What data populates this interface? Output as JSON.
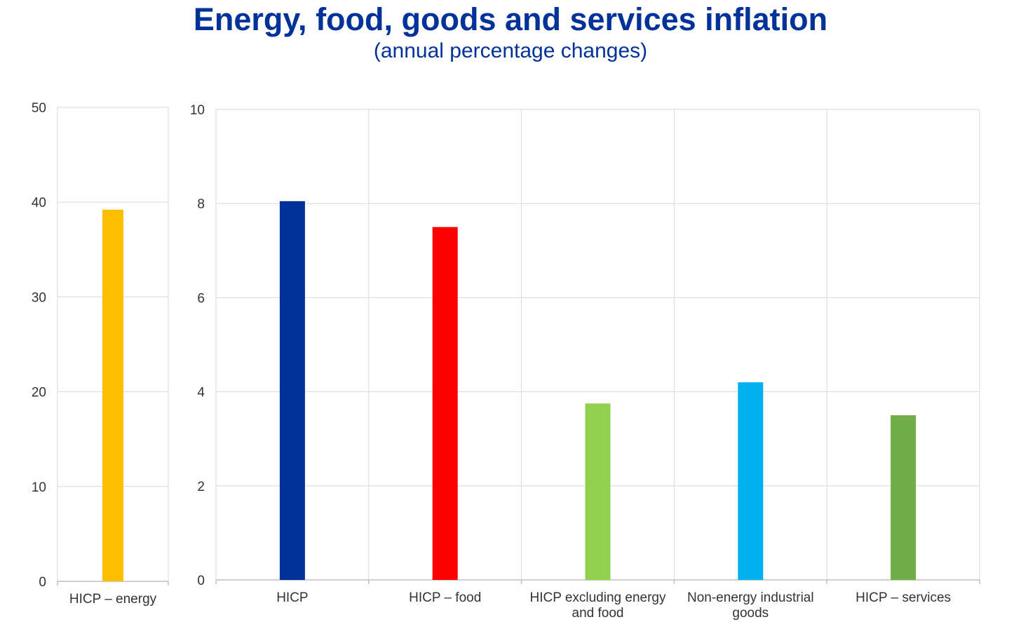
{
  "title": "Energy, food, goods and services inflation",
  "subtitle": "(annual percentage changes)",
  "chart_data": [
    {
      "type": "bar",
      "categories": [
        [
          "HICP – energy"
        ]
      ],
      "values": [
        39.2
      ],
      "colors": [
        "#FFBF00"
      ],
      "ylim": [
        0,
        50
      ],
      "yticks": [
        0,
        10,
        20,
        30,
        40,
        50
      ],
      "grid": true
    },
    {
      "type": "bar",
      "categories": [
        [
          "HICP"
        ],
        [
          "HICP – food"
        ],
        [
          "HICP excluding energy",
          "and food"
        ],
        [
          "Non-energy industrial",
          "goods"
        ],
        [
          "HICP – services"
        ]
      ],
      "values": [
        8.05,
        7.5,
        3.75,
        4.2,
        3.5
      ],
      "colors": [
        "#003299",
        "#FF0000",
        "#92D050",
        "#00B0F0",
        "#70AD47"
      ],
      "ylim": [
        0,
        10
      ],
      "yticks": [
        0,
        2,
        4,
        6,
        8,
        10
      ],
      "grid": true
    }
  ]
}
